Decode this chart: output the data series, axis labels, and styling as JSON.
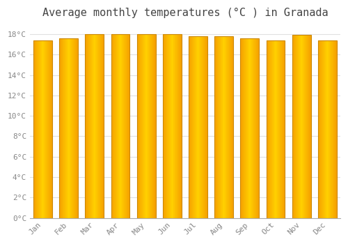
{
  "title": "Average monthly temperatures (°C ) in Granada",
  "months": [
    "Jan",
    "Feb",
    "Mar",
    "Apr",
    "May",
    "Jun",
    "Jul",
    "Aug",
    "Sep",
    "Oct",
    "Nov",
    "Dec"
  ],
  "values": [
    17.4,
    17.6,
    18.0,
    18.0,
    18.0,
    18.0,
    17.8,
    17.8,
    17.6,
    17.4,
    17.9,
    17.4
  ],
  "bar_color_center": "#FFD000",
  "bar_color_edge": "#F5A000",
  "background_color": "#ffffff",
  "plot_bg_color": "#ffffff",
  "ylim": [
    0,
    19
  ],
  "yticks": [
    0,
    2,
    4,
    6,
    8,
    10,
    12,
    14,
    16,
    18
  ],
  "title_fontsize": 11,
  "tick_fontsize": 8,
  "bar_edge_color": "#cc8800",
  "grid_color": "#e0e0e0",
  "bar_width": 0.72
}
